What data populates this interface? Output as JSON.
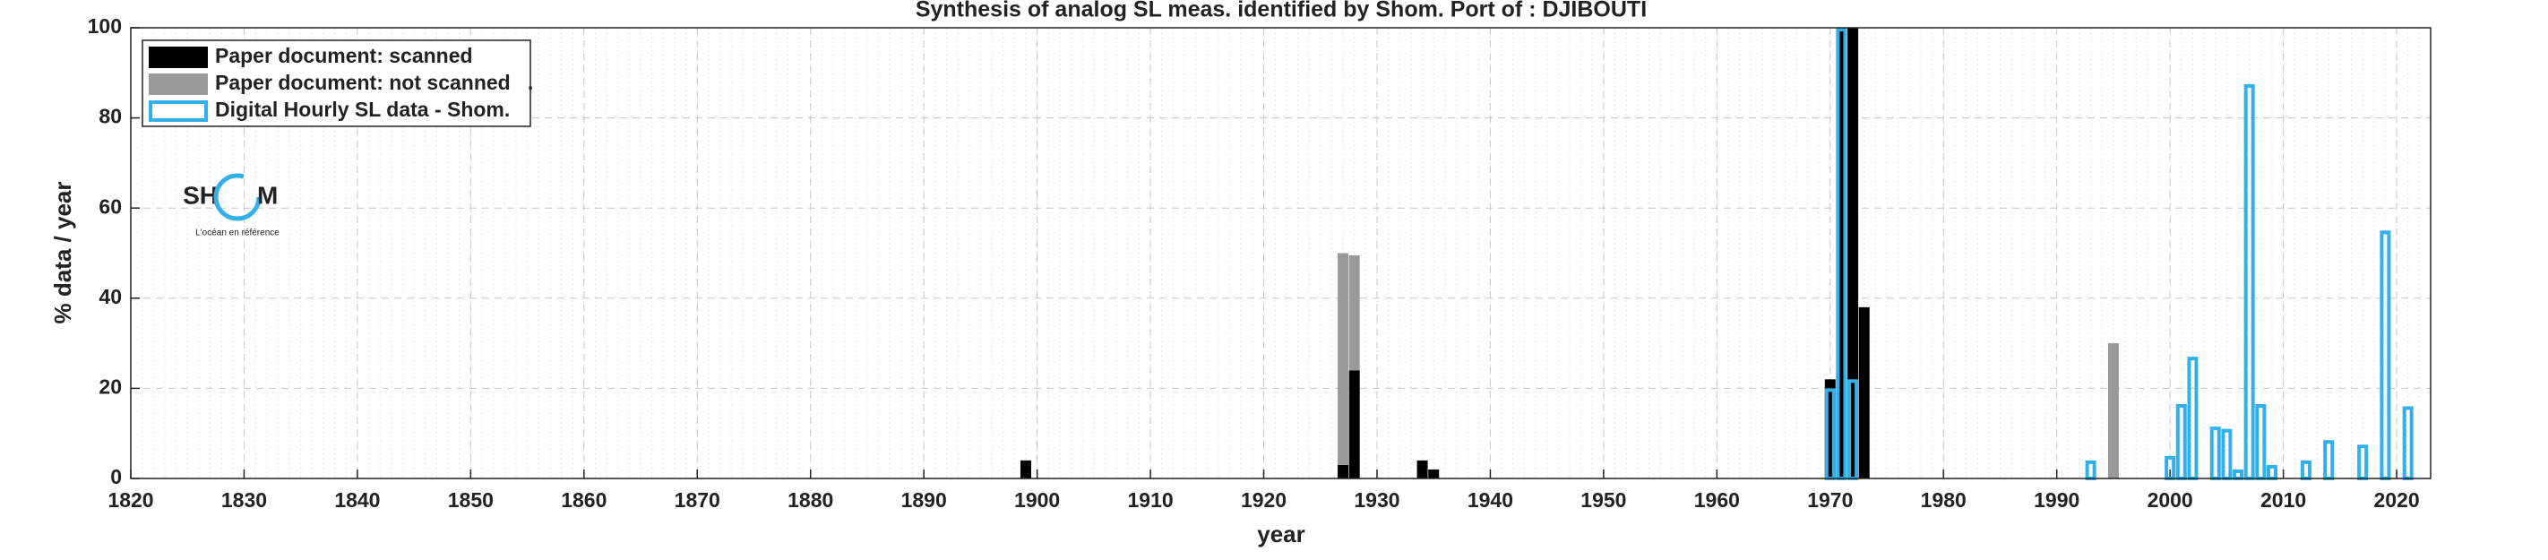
{
  "chart_data": {
    "type": "bar",
    "title": "Synthesis of analog SL meas. identified by Shom. Port of : DJIBOUTI",
    "x_label": "year",
    "y_label": "% data / year",
    "xlim": [
      1820,
      2023
    ],
    "ylim": [
      0,
      100
    ],
    "xticks": [
      1820,
      1830,
      1840,
      1850,
      1860,
      1870,
      1880,
      1890,
      1900,
      1910,
      1920,
      1930,
      1940,
      1950,
      1960,
      1970,
      1980,
      1990,
      2000,
      2010,
      2020
    ],
    "yticks": [
      0,
      20,
      40,
      60,
      80,
      100
    ],
    "grid": true,
    "legend": "upper left",
    "logo": {
      "left": "SH",
      "right": "M",
      "tagline": "L'océan en référence"
    },
    "series": [
      {
        "name": "Paper document: scanned",
        "color": "#000000",
        "style": "filled",
        "x": [
          1899,
          1927,
          1928,
          1934,
          1935,
          1970,
          1971,
          1972,
          1973
        ],
        "values": [
          4,
          3,
          24,
          4,
          2,
          22,
          100,
          100,
          38
        ]
      },
      {
        "name": "Paper document: not scanned   .",
        "color": "#999999",
        "style": "filled",
        "stacked": true,
        "x": [
          1927,
          1928,
          1995
        ],
        "values": [
          47,
          25.5,
          30
        ]
      },
      {
        "name": "Digital Hourly SL data - Shom.",
        "color": "#33b0ea",
        "style": "outline",
        "x": [
          1970,
          1971,
          1972,
          1993,
          2000,
          2001,
          2002,
          2004,
          2005,
          2006,
          2007,
          2008,
          2009,
          2012,
          2014,
          2017,
          2019,
          2021
        ],
        "values": [
          20,
          100,
          22,
          4,
          5,
          16.5,
          27,
          11.5,
          11,
          2,
          87.5,
          16.5,
          3,
          4,
          8.5,
          7.5,
          55,
          16
        ]
      }
    ]
  }
}
